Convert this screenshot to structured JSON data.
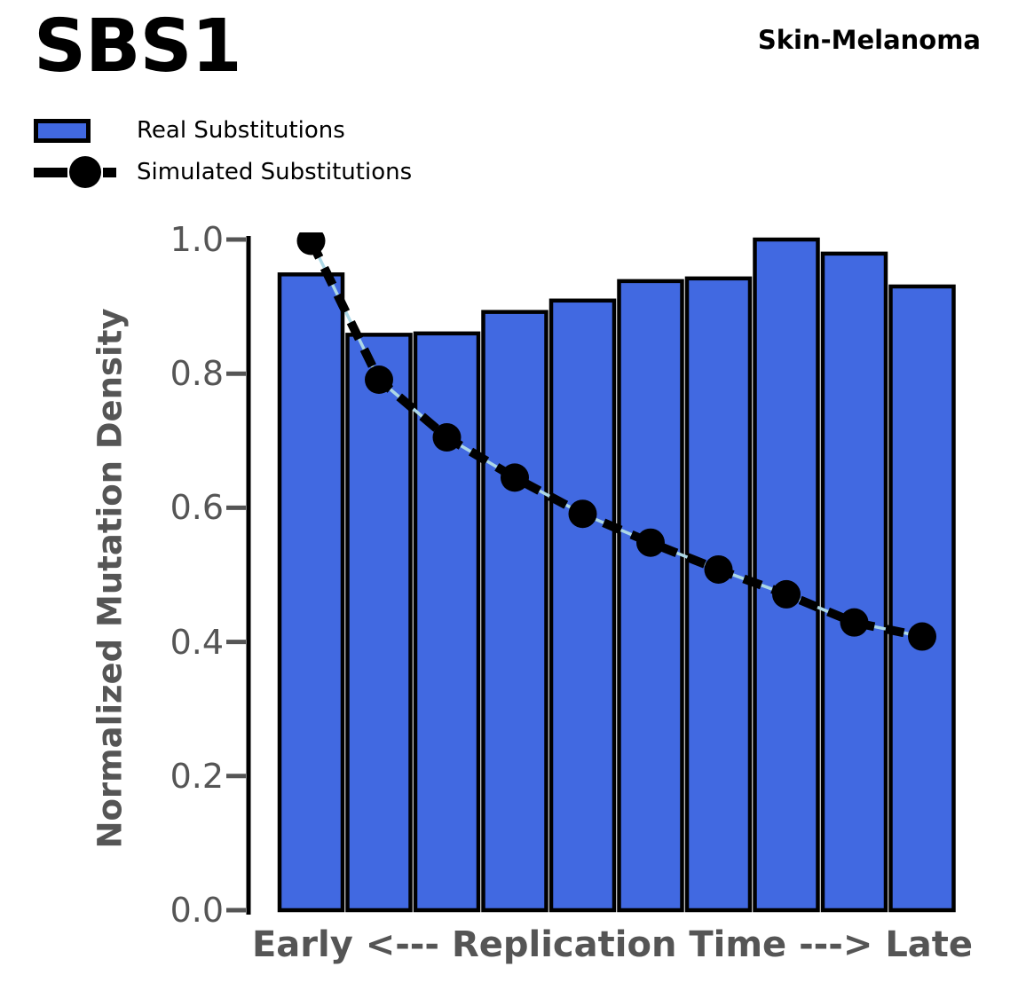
{
  "header": {
    "title": "SBS1",
    "cohort": "Skin-Melanoma"
  },
  "legend": [
    {
      "label": "Real Substitutions",
      "swatch": "bar"
    },
    {
      "label": "Simulated Substitutions",
      "swatch": "dashed-line-with-dot"
    }
  ],
  "axes": {
    "ylabel": "Normalized Mutation Density",
    "xlabel": "Early <--- Replication Time ---> Late"
  },
  "colors": {
    "bar_fill": "#4169E1",
    "bar_edge": "#000000",
    "line": "#000000",
    "line_underlay": "#ADD8E6",
    "axis_spine": "#000000",
    "tick": "#555555",
    "axis_text": "#555555",
    "title_text": "#000000"
  },
  "chart_data": {
    "type": "bar",
    "title": "SBS1",
    "subtitle": "Skin-Melanoma",
    "xlabel": "Early <--- Replication Time ---> Late",
    "ylabel": "Normalized Mutation Density",
    "ylim": [
      0.0,
      1.0
    ],
    "yticks": [
      "0.0",
      "0.2",
      "0.4",
      "0.6",
      "0.8",
      "1.0"
    ],
    "x_bins": 10,
    "x_tick_labels": [],
    "grid": false,
    "legend_position": "upper-left-outside",
    "series": [
      {
        "name": "Real Substitutions",
        "type": "bar",
        "color": "#4169E1",
        "values": [
          0.948,
          0.858,
          0.86,
          0.892,
          0.909,
          0.938,
          0.942,
          1.0,
          0.979,
          0.93
        ]
      },
      {
        "name": "Simulated Substitutions",
        "type": "line",
        "color": "#000000",
        "underlay_color": "#ADD8E6",
        "marker": "circle",
        "dashed": true,
        "values": [
          0.998,
          0.791,
          0.705,
          0.645,
          0.591,
          0.548,
          0.508,
          0.471,
          0.429,
          0.408
        ]
      }
    ]
  }
}
